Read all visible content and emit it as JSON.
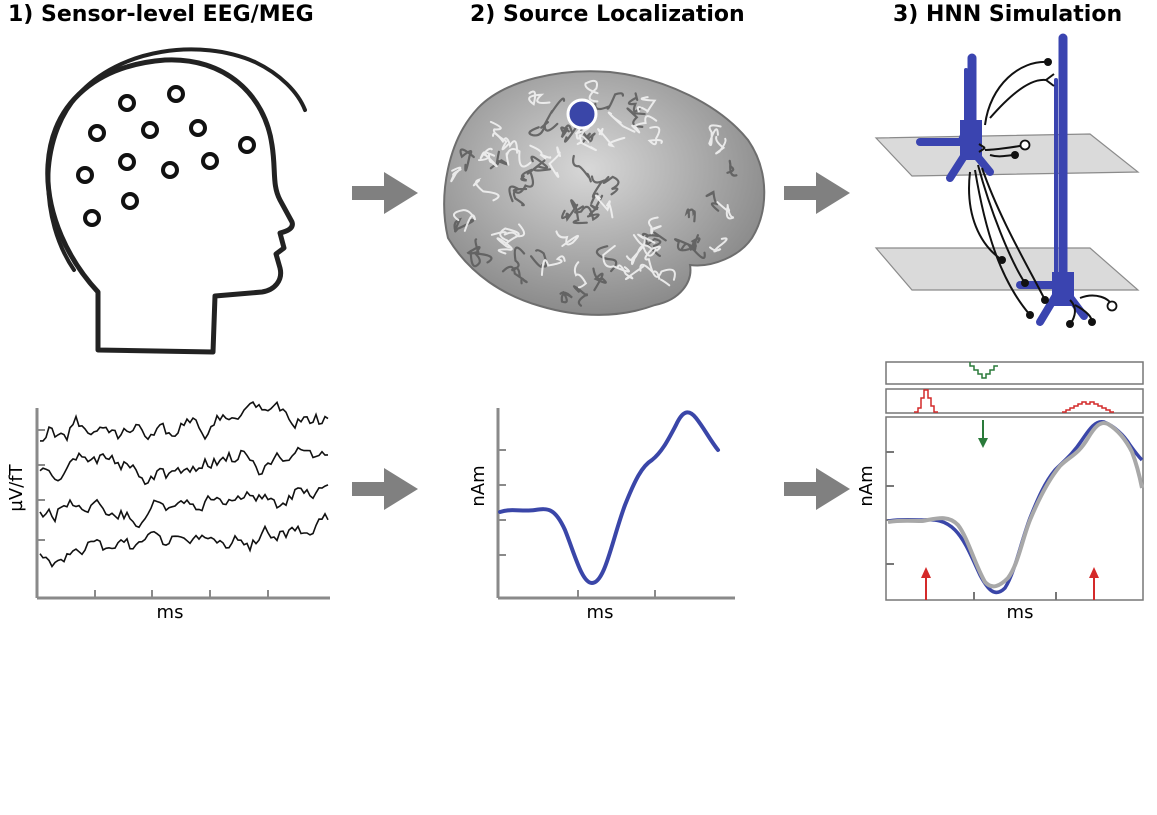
{
  "panels": [
    {
      "title": "1) Sensor-level EEG/MEG",
      "xlabel": "ms",
      "ylabel": "µV/fT"
    },
    {
      "title": "2) Source Localization",
      "xlabel": "ms",
      "ylabel": "nAm"
    },
    {
      "title": "3) HNN Simulation",
      "xlabel": "ms",
      "ylabel": "nAm"
    }
  ],
  "colors": {
    "source_blue": "#3a46a8",
    "neuron_blue": "#3a44b0",
    "sim_gray": "#a8a8a8",
    "proximal_red": "#d42a2a",
    "distal_green": "#2a7a3a",
    "arrow_gray": "#808080"
  },
  "icons": [
    "head-icon",
    "eeg-sensor-icon",
    "brain-cortex-icon",
    "pyramidal-neuron-icon",
    "flow-arrow-icon"
  ]
}
